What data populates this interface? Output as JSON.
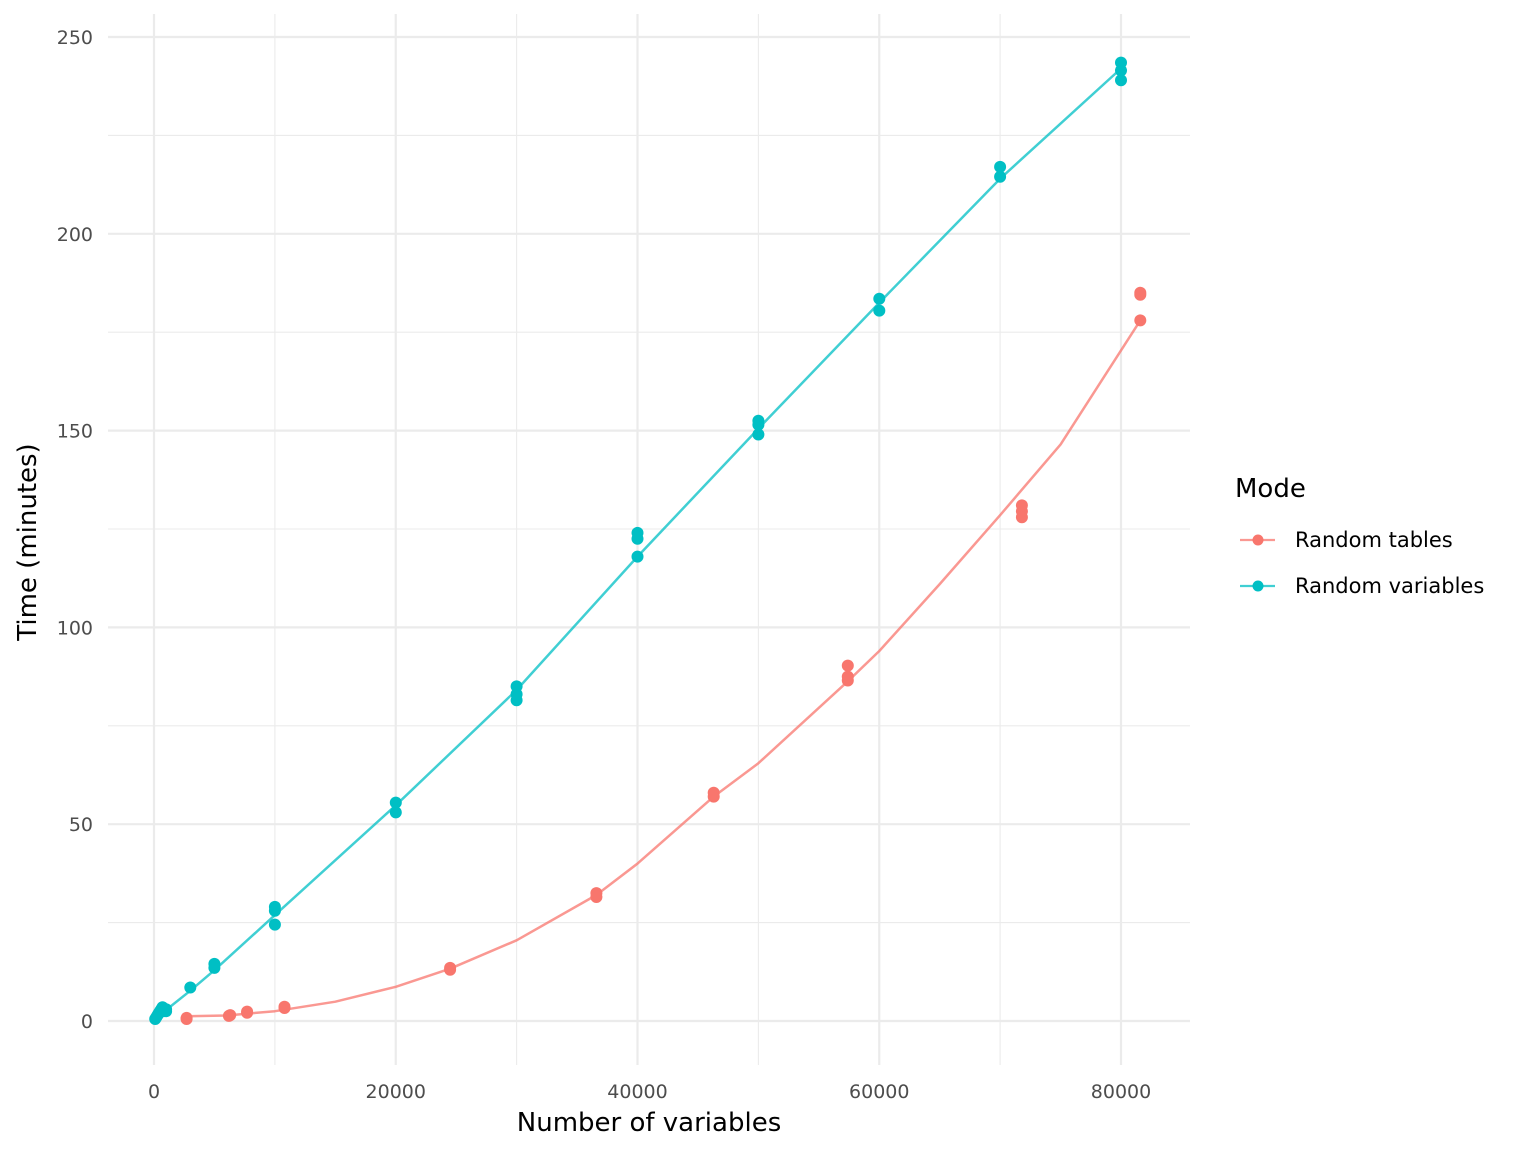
{
  "chart_data": {
    "type": "scatter",
    "xlabel": "Number of variables",
    "ylabel": "Time (minutes)",
    "xlim": [
      -4000,
      86000
    ],
    "ylim": [
      -11,
      256
    ],
    "x_ticks": [
      0,
      20000,
      40000,
      60000,
      80000
    ],
    "x_tick_labels": [
      "0",
      "20000",
      "40000",
      "60000",
      "80000"
    ],
    "y_ticks": [
      0,
      50,
      100,
      150,
      200,
      250
    ],
    "y_tick_labels": [
      "0",
      "50",
      "100",
      "150",
      "200",
      "250"
    ],
    "grid": true,
    "legend": {
      "title": "Mode",
      "position": "right"
    },
    "series": [
      {
        "name": "Random tables",
        "color": "#F8766D",
        "points": [
          [
            2700,
            0.5
          ],
          [
            2700,
            0.8
          ],
          [
            6200,
            1.3
          ],
          [
            6300,
            1.5
          ],
          [
            7700,
            2.1
          ],
          [
            7700,
            2.4
          ],
          [
            10800,
            3.3
          ],
          [
            10800,
            3.6
          ],
          [
            24500,
            13.0
          ],
          [
            24500,
            13.5
          ],
          [
            36600,
            31.5
          ],
          [
            36600,
            32.5
          ],
          [
            46300,
            57.0
          ],
          [
            46300,
            58.0
          ],
          [
            57400,
            86.5
          ],
          [
            57400,
            87.5
          ],
          [
            57400,
            90.3
          ],
          [
            71800,
            128.0
          ],
          [
            71800,
            129.5
          ],
          [
            71800,
            131.0
          ],
          [
            81600,
            178.0
          ],
          [
            81600,
            184.5
          ],
          [
            81600,
            185.0
          ]
        ],
        "fit": [
          [
            2700,
            1.2
          ],
          [
            6000,
            1.4
          ],
          [
            10000,
            2.5
          ],
          [
            15000,
            4.9
          ],
          [
            20000,
            8.7
          ],
          [
            24500,
            13.3
          ],
          [
            30000,
            20.5
          ],
          [
            36600,
            32.0
          ],
          [
            40000,
            40.0
          ],
          [
            46300,
            57.0
          ],
          [
            50000,
            65.5
          ],
          [
            57400,
            86.3
          ],
          [
            60000,
            94.0
          ],
          [
            65000,
            111.0
          ],
          [
            70000,
            128.5
          ],
          [
            75000,
            146.5
          ],
          [
            81600,
            178.0
          ]
        ]
      },
      {
        "name": "Random variables",
        "color": "#00BFC4",
        "points": [
          [
            100,
            0.5
          ],
          [
            200,
            1.0
          ],
          [
            300,
            1.5
          ],
          [
            400,
            2.0
          ],
          [
            500,
            2.5
          ],
          [
            600,
            3.0
          ],
          [
            700,
            3.5
          ],
          [
            800,
            2.5
          ],
          [
            1000,
            3.0
          ],
          [
            1000,
            2.5
          ],
          [
            3000,
            8.5
          ],
          [
            5000,
            13.5
          ],
          [
            5000,
            14.5
          ],
          [
            10000,
            24.5
          ],
          [
            10000,
            28.0
          ],
          [
            10000,
            29.0
          ],
          [
            20000,
            53.0
          ],
          [
            20000,
            55.5
          ],
          [
            30000,
            81.5
          ],
          [
            30000,
            83.0
          ],
          [
            30000,
            85.0
          ],
          [
            40000,
            118.0
          ],
          [
            40000,
            122.5
          ],
          [
            40000,
            124.0
          ],
          [
            50000,
            149.0
          ],
          [
            50000,
            151.5
          ],
          [
            50000,
            152.5
          ],
          [
            60000,
            180.5
          ],
          [
            60000,
            183.5
          ],
          [
            70000,
            214.5
          ],
          [
            70000,
            217.0
          ],
          [
            80000,
            239.0
          ],
          [
            80000,
            241.5
          ],
          [
            80000,
            243.5
          ]
        ],
        "fit": [
          [
            0,
            0.5
          ],
          [
            1000,
            2.8
          ],
          [
            3000,
            7.7
          ],
          [
            5000,
            12.9
          ],
          [
            10000,
            26.9
          ],
          [
            20000,
            54.8
          ],
          [
            30000,
            84.1
          ],
          [
            40000,
            118.0
          ],
          [
            50000,
            150.5
          ],
          [
            60000,
            182.5
          ],
          [
            70000,
            214.0
          ],
          [
            80000,
            242.0
          ]
        ]
      }
    ]
  }
}
